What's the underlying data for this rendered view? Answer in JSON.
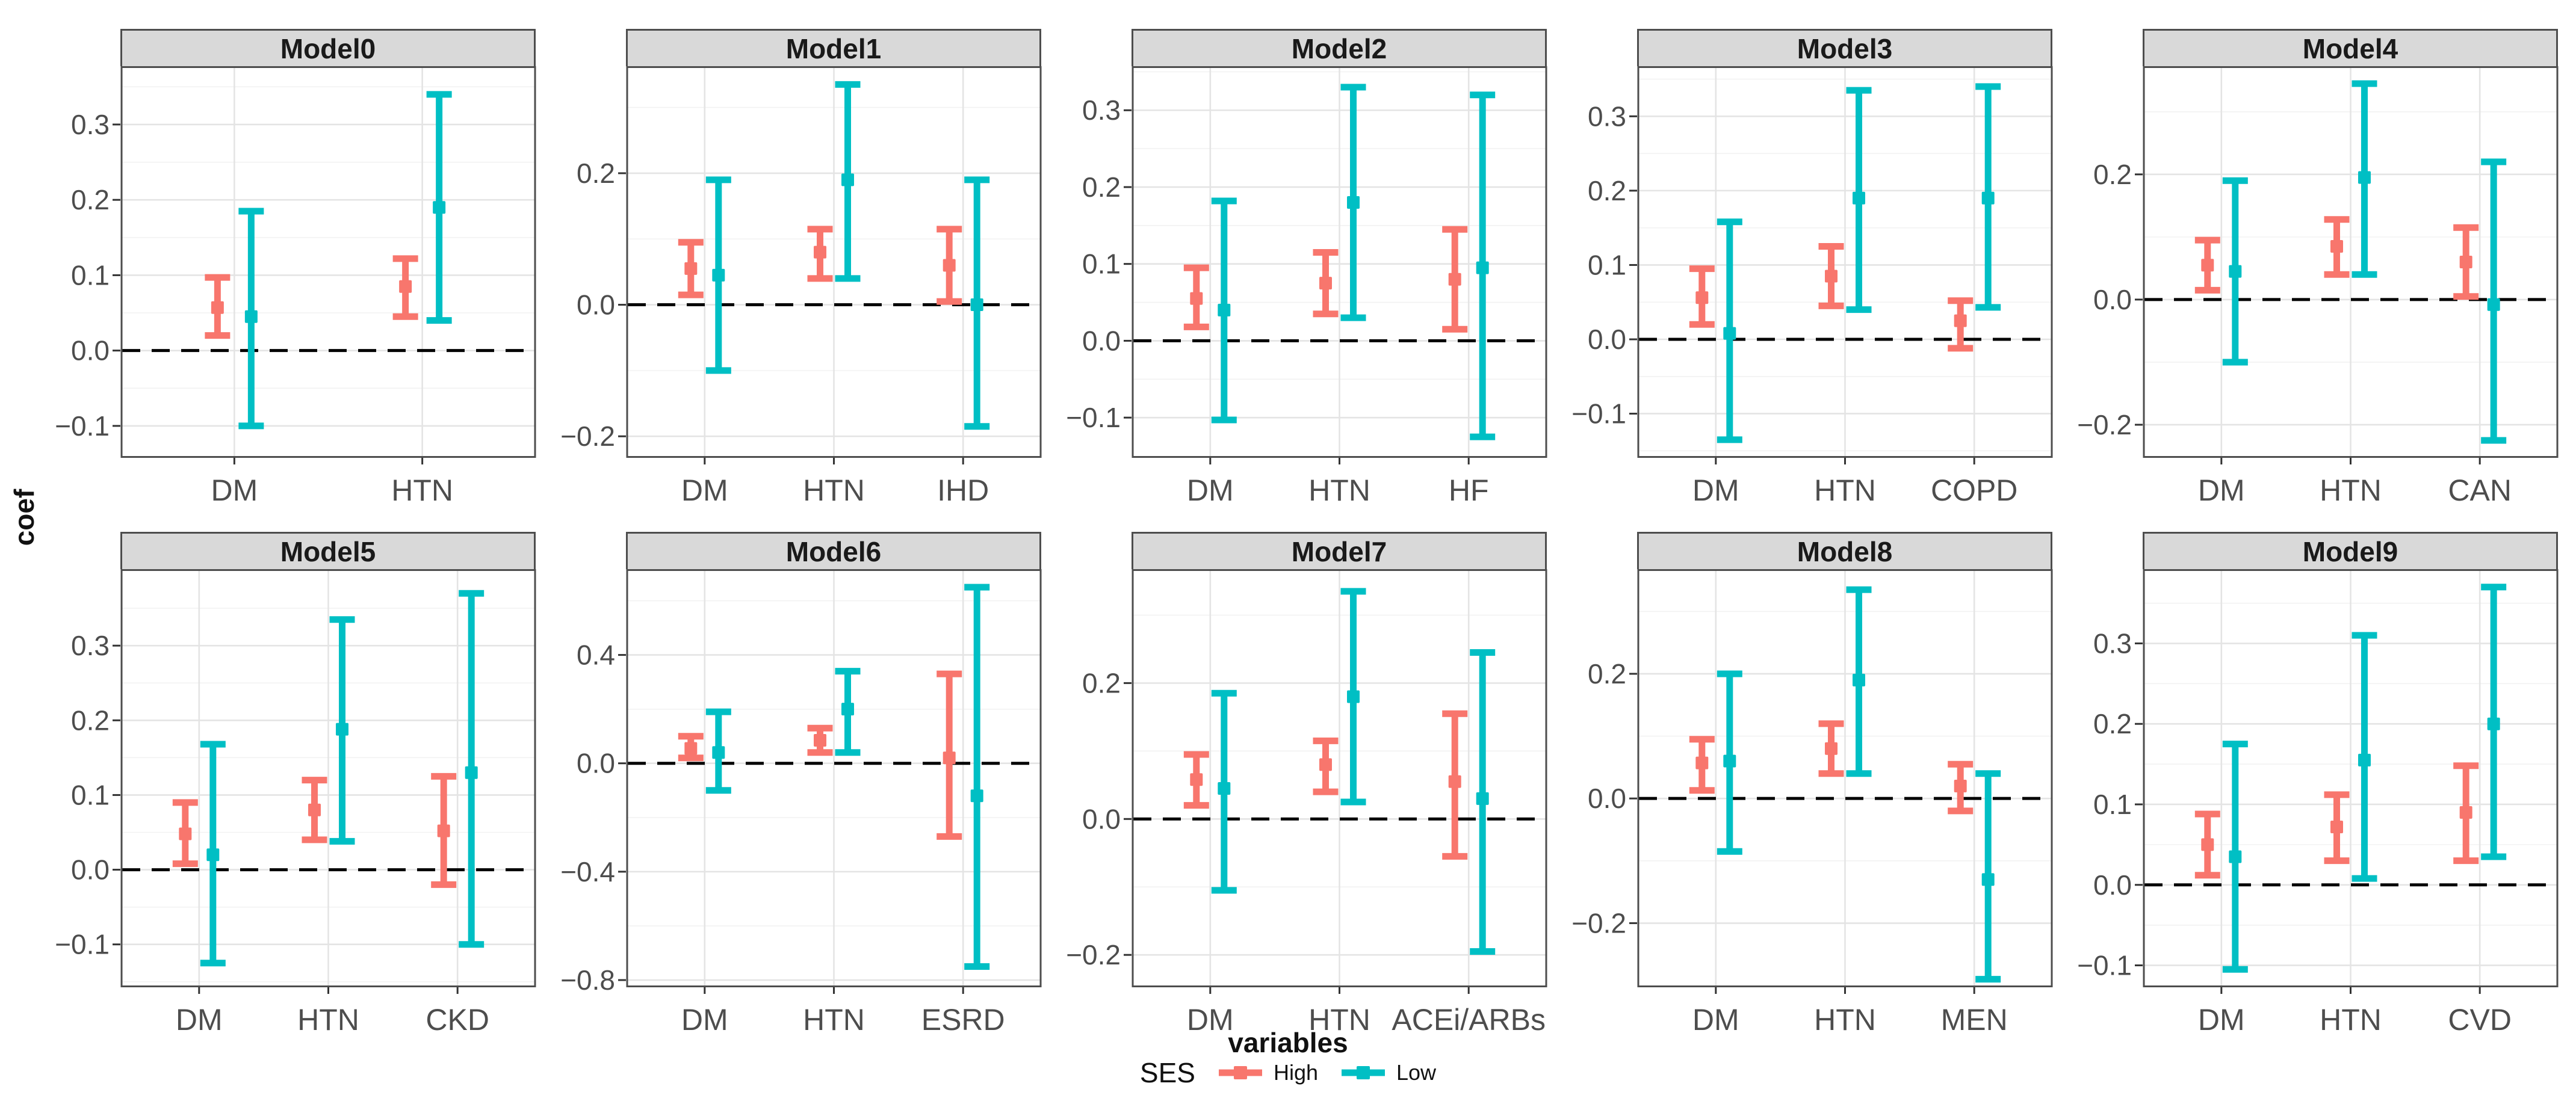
{
  "chart_data": {
    "type": "scatter",
    "subtype": "pointrange-errorbar, faceted 2x5 grid, free y scales",
    "xlabel": "variables",
    "ylabel": "coef",
    "grid": true,
    "zero_reference_line": "dashed black horizontal line at y = 0 in every panel",
    "legend": {
      "title": "SES",
      "position": "bottom-center",
      "entries": [
        {
          "label": "High",
          "color": "#F8766D"
        },
        {
          "label": "Low",
          "color": "#00BFC4"
        }
      ]
    },
    "style": {
      "strip_background": "#D9D9D9",
      "panel_background": "#FFFFFF",
      "panel_border": "#4d4d4d",
      "grid_major_color": "#E4E4E4",
      "grid_minor_color": "#F2F2F2",
      "tick_label_color": "#4d4d4d"
    },
    "facets": [
      {
        "title": "Model0",
        "categories": [
          "DM",
          "HTN"
        ],
        "ylim": [
          -0.14,
          0.375
        ],
        "yticks": [
          0.3,
          0.2,
          0.1,
          0.0,
          -0.1
        ],
        "series": [
          {
            "name": "High",
            "color": "#F8766D",
            "values": [
              {
                "x": "DM",
                "est": 0.057,
                "lo": 0.02,
                "hi": 0.097
              },
              {
                "x": "HTN",
                "est": 0.085,
                "lo": 0.045,
                "hi": 0.122
              }
            ]
          },
          {
            "name": "Low",
            "color": "#00BFC4",
            "values": [
              {
                "x": "DM",
                "est": 0.045,
                "lo": -0.1,
                "hi": 0.185
              },
              {
                "x": "HTN",
                "est": 0.19,
                "lo": 0.04,
                "hi": 0.34
              }
            ]
          }
        ]
      },
      {
        "title": "Model1",
        "categories": [
          "DM",
          "HTN",
          "IHD"
        ],
        "ylim": [
          -0.23,
          0.36
        ],
        "yticks": [
          0.2,
          0.0,
          -0.2
        ],
        "series": [
          {
            "name": "High",
            "color": "#F8766D",
            "values": [
              {
                "x": "DM",
                "est": 0.055,
                "lo": 0.015,
                "hi": 0.095
              },
              {
                "x": "HTN",
                "est": 0.08,
                "lo": 0.04,
                "hi": 0.115
              },
              {
                "x": "IHD",
                "est": 0.06,
                "lo": 0.005,
                "hi": 0.115
              }
            ]
          },
          {
            "name": "Low",
            "color": "#00BFC4",
            "values": [
              {
                "x": "DM",
                "est": 0.045,
                "lo": -0.1,
                "hi": 0.19
              },
              {
                "x": "HTN",
                "est": 0.19,
                "lo": 0.04,
                "hi": 0.335
              },
              {
                "x": "IHD",
                "est": 0.0,
                "lo": -0.185,
                "hi": 0.19
              }
            ]
          }
        ]
      },
      {
        "title": "Model2",
        "categories": [
          "DM",
          "HTN",
          "HF"
        ],
        "ylim": [
          -0.15,
          0.355
        ],
        "yticks": [
          0.3,
          0.2,
          0.1,
          0.0,
          -0.1
        ],
        "series": [
          {
            "name": "High",
            "color": "#F8766D",
            "values": [
              {
                "x": "DM",
                "est": 0.055,
                "lo": 0.018,
                "hi": 0.095
              },
              {
                "x": "HTN",
                "est": 0.075,
                "lo": 0.035,
                "hi": 0.115
              },
              {
                "x": "HF",
                "est": 0.08,
                "lo": 0.015,
                "hi": 0.145
              }
            ]
          },
          {
            "name": "Low",
            "color": "#00BFC4",
            "values": [
              {
                "x": "DM",
                "est": 0.04,
                "lo": -0.103,
                "hi": 0.182
              },
              {
                "x": "HTN",
                "est": 0.18,
                "lo": 0.03,
                "hi": 0.33
              },
              {
                "x": "HF",
                "est": 0.095,
                "lo": -0.125,
                "hi": 0.32
              }
            ]
          }
        ]
      },
      {
        "title": "Model3",
        "categories": [
          "DM",
          "HTN",
          "COPD"
        ],
        "ylim": [
          -0.157,
          0.365
        ],
        "yticks": [
          0.3,
          0.2,
          0.1,
          0.0,
          -0.1
        ],
        "series": [
          {
            "name": "High",
            "color": "#F8766D",
            "values": [
              {
                "x": "DM",
                "est": 0.056,
                "lo": 0.02,
                "hi": 0.095
              },
              {
                "x": "HTN",
                "est": 0.085,
                "lo": 0.045,
                "hi": 0.125
              },
              {
                "x": "COPD",
                "est": 0.025,
                "lo": -0.012,
                "hi": 0.052
              }
            ]
          },
          {
            "name": "Low",
            "color": "#00BFC4",
            "values": [
              {
                "x": "DM",
                "est": 0.008,
                "lo": -0.135,
                "hi": 0.158
              },
              {
                "x": "HTN",
                "est": 0.19,
                "lo": 0.04,
                "hi": 0.335
              },
              {
                "x": "COPD",
                "est": 0.19,
                "lo": 0.043,
                "hi": 0.34
              }
            ]
          }
        ]
      },
      {
        "title": "Model4",
        "categories": [
          "DM",
          "HTN",
          "CAN"
        ],
        "ylim": [
          -0.25,
          0.37
        ],
        "yticks": [
          0.2,
          0.0,
          -0.2
        ],
        "series": [
          {
            "name": "High",
            "color": "#F8766D",
            "values": [
              {
                "x": "DM",
                "est": 0.055,
                "lo": 0.015,
                "hi": 0.095
              },
              {
                "x": "HTN",
                "est": 0.085,
                "lo": 0.04,
                "hi": 0.128
              },
              {
                "x": "CAN",
                "est": 0.06,
                "lo": 0.005,
                "hi": 0.115
              }
            ]
          },
          {
            "name": "Low",
            "color": "#00BFC4",
            "values": [
              {
                "x": "DM",
                "est": 0.045,
                "lo": -0.1,
                "hi": 0.19
              },
              {
                "x": "HTN",
                "est": 0.195,
                "lo": 0.04,
                "hi": 0.345
              },
              {
                "x": "CAN",
                "est": -0.008,
                "lo": -0.225,
                "hi": 0.22
              }
            ]
          }
        ]
      },
      {
        "title": "Model5",
        "categories": [
          "DM",
          "HTN",
          "CKD"
        ],
        "ylim": [
          -0.155,
          0.4
        ],
        "yticks": [
          0.3,
          0.2,
          0.1,
          0.0,
          -0.1
        ],
        "series": [
          {
            "name": "High",
            "color": "#F8766D",
            "values": [
              {
                "x": "DM",
                "est": 0.048,
                "lo": 0.008,
                "hi": 0.09
              },
              {
                "x": "HTN",
                "est": 0.08,
                "lo": 0.04,
                "hi": 0.12
              },
              {
                "x": "CKD",
                "est": 0.052,
                "lo": -0.02,
                "hi": 0.125
              }
            ]
          },
          {
            "name": "Low",
            "color": "#00BFC4",
            "values": [
              {
                "x": "DM",
                "est": 0.02,
                "lo": -0.125,
                "hi": 0.168
              },
              {
                "x": "HTN",
                "est": 0.188,
                "lo": 0.038,
                "hi": 0.335
              },
              {
                "x": "CKD",
                "est": 0.13,
                "lo": -0.1,
                "hi": 0.37
              }
            ]
          }
        ]
      },
      {
        "title": "Model6",
        "categories": [
          "DM",
          "HTN",
          "ESRD"
        ],
        "ylim": [
          -0.82,
          0.71
        ],
        "yticks": [
          0.4,
          0.0,
          -0.4,
          -0.8
        ],
        "series": [
          {
            "name": "High",
            "color": "#F8766D",
            "values": [
              {
                "x": "DM",
                "est": 0.055,
                "lo": 0.02,
                "hi": 0.1
              },
              {
                "x": "HTN",
                "est": 0.085,
                "lo": 0.04,
                "hi": 0.13
              },
              {
                "x": "ESRD",
                "est": 0.02,
                "lo": -0.27,
                "hi": 0.33
              }
            ]
          },
          {
            "name": "Low",
            "color": "#00BFC4",
            "values": [
              {
                "x": "DM",
                "est": 0.04,
                "lo": -0.1,
                "hi": 0.19
              },
              {
                "x": "HTN",
                "est": 0.2,
                "lo": 0.04,
                "hi": 0.34
              },
              {
                "x": "ESRD",
                "est": -0.12,
                "lo": -0.75,
                "hi": 0.65
              }
            ]
          }
        ]
      },
      {
        "title": "Model7",
        "categories": [
          "DM",
          "HTN",
          "ACEi/ARBs"
        ],
        "ylim": [
          -0.245,
          0.365
        ],
        "yticks": [
          0.2,
          0.0,
          -0.2
        ],
        "series": [
          {
            "name": "High",
            "color": "#F8766D",
            "values": [
              {
                "x": "DM",
                "est": 0.058,
                "lo": 0.02,
                "hi": 0.095
              },
              {
                "x": "HTN",
                "est": 0.08,
                "lo": 0.04,
                "hi": 0.115
              },
              {
                "x": "ACEi/ARBs",
                "est": 0.055,
                "lo": -0.055,
                "hi": 0.155
              }
            ]
          },
          {
            "name": "Low",
            "color": "#00BFC4",
            "values": [
              {
                "x": "DM",
                "est": 0.045,
                "lo": -0.105,
                "hi": 0.185
              },
              {
                "x": "HTN",
                "est": 0.18,
                "lo": 0.025,
                "hi": 0.335
              },
              {
                "x": "ACEi/ARBs",
                "est": 0.03,
                "lo": -0.195,
                "hi": 0.245
              }
            ]
          }
        ]
      },
      {
        "title": "Model8",
        "categories": [
          "DM",
          "HTN",
          "MEN"
        ],
        "ylim": [
          -0.3,
          0.365
        ],
        "yticks": [
          0.2,
          0.0,
          -0.2
        ],
        "series": [
          {
            "name": "High",
            "color": "#F8766D",
            "values": [
              {
                "x": "DM",
                "est": 0.057,
                "lo": 0.013,
                "hi": 0.095
              },
              {
                "x": "HTN",
                "est": 0.08,
                "lo": 0.04,
                "hi": 0.12
              },
              {
                "x": "MEN",
                "est": 0.02,
                "lo": -0.02,
                "hi": 0.055
              }
            ]
          },
          {
            "name": "Low",
            "color": "#00BFC4",
            "values": [
              {
                "x": "DM",
                "est": 0.06,
                "lo": -0.085,
                "hi": 0.2
              },
              {
                "x": "HTN",
                "est": 0.19,
                "lo": 0.04,
                "hi": 0.335
              },
              {
                "x": "MEN",
                "est": -0.13,
                "lo": -0.29,
                "hi": 0.04
              }
            ]
          }
        ]
      },
      {
        "title": "Model9",
        "categories": [
          "DM",
          "HTN",
          "CVD"
        ],
        "ylim": [
          -0.125,
          0.39
        ],
        "yticks": [
          0.3,
          0.2,
          0.1,
          0.0,
          -0.1
        ],
        "series": [
          {
            "name": "High",
            "color": "#F8766D",
            "values": [
              {
                "x": "DM",
                "est": 0.05,
                "lo": 0.012,
                "hi": 0.088
              },
              {
                "x": "HTN",
                "est": 0.072,
                "lo": 0.03,
                "hi": 0.112
              },
              {
                "x": "CVD",
                "est": 0.09,
                "lo": 0.03,
                "hi": 0.148
              }
            ]
          },
          {
            "name": "Low",
            "color": "#00BFC4",
            "values": [
              {
                "x": "DM",
                "est": 0.035,
                "lo": -0.105,
                "hi": 0.175
              },
              {
                "x": "HTN",
                "est": 0.155,
                "lo": 0.008,
                "hi": 0.31
              },
              {
                "x": "CVD",
                "est": 0.2,
                "lo": 0.035,
                "hi": 0.37
              }
            ]
          }
        ]
      }
    ]
  }
}
